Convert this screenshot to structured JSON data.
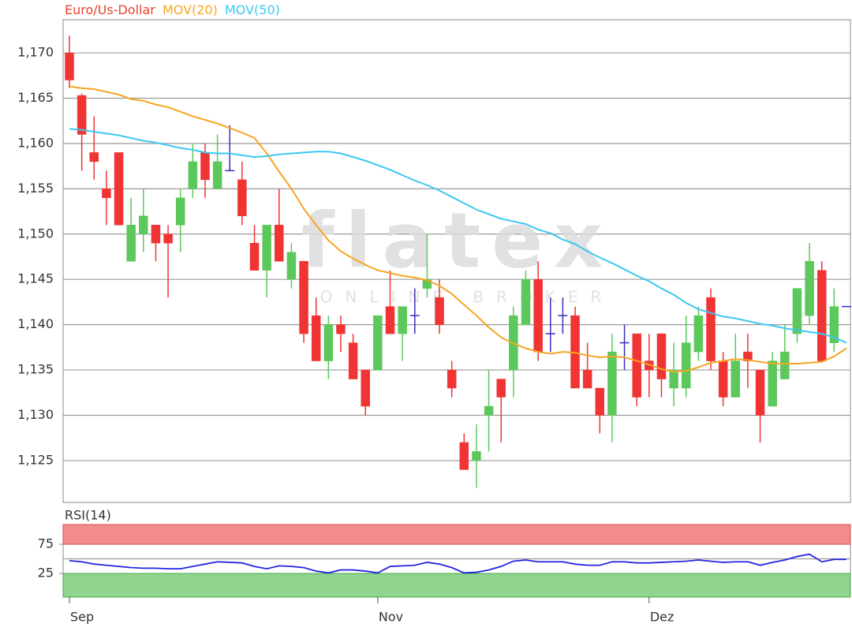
{
  "chart_data": [
    {
      "type": "candlestick",
      "ylim": [
        1.12038,
        1.17366
      ],
      "yticks": [
        {
          "value": 1.125,
          "label": "1,125"
        },
        {
          "value": 1.13,
          "label": "1,130"
        },
        {
          "value": 1.135,
          "label": "1,135"
        },
        {
          "value": 1.14,
          "label": "1,140"
        },
        {
          "value": 1.145,
          "label": "1,145"
        },
        {
          "value": 1.15,
          "label": "1,150"
        },
        {
          "value": 1.155,
          "label": "1,155"
        },
        {
          "value": 1.16,
          "label": "1,160"
        },
        {
          "value": 1.165,
          "label": "1,165"
        },
        {
          "value": 1.17,
          "label": "1,170"
        }
      ],
      "grid": true,
      "watermark": {
        "logo": "flatex",
        "tagline": "ONLINE BROKER"
      },
      "series": [
        {
          "name": "Euro/Us-Dollar",
          "color": "#e8432e",
          "up_color": "#5cc85c",
          "down_color": "#f03434",
          "flat_color": "#3a2fbf",
          "open": [
            1.17,
            1.1653,
            1.159,
            1.155,
            1.159,
            1.147,
            1.15,
            1.151,
            1.15,
            1.151,
            1.155,
            1.159,
            1.155,
            1.157,
            1.156,
            1.149,
            1.146,
            1.151,
            1.145,
            1.147,
            1.141,
            1.136,
            1.14,
            1.138,
            1.135,
            1.135,
            1.142,
            1.139,
            1.141,
            1.144,
            1.143,
            1.135,
            1.127,
            1.125,
            1.13,
            1.134,
            1.135,
            1.14,
            1.145,
            1.139,
            1.141,
            1.141,
            1.135,
            1.133,
            1.13,
            1.138,
            1.139,
            1.136,
            1.139,
            1.133,
            1.133,
            1.137,
            1.143,
            1.136,
            1.132,
            1.137,
            1.135,
            1.131,
            1.134,
            1.139,
            1.141,
            1.146,
            1.138,
            1.142
          ],
          "high": [
            1.1719,
            1.1655,
            1.163,
            1.157,
            1.159,
            1.154,
            1.155,
            1.151,
            1.151,
            1.155,
            1.16,
            1.16,
            1.161,
            1.162,
            1.158,
            1.151,
            1.151,
            1.155,
            1.149,
            1.147,
            1.143,
            1.141,
            1.141,
            1.139,
            1.135,
            1.141,
            1.146,
            1.142,
            1.144,
            1.15,
            1.145,
            1.136,
            1.128,
            1.129,
            1.135,
            1.134,
            1.142,
            1.146,
            1.147,
            1.143,
            1.143,
            1.142,
            1.138,
            1.133,
            1.139,
            1.14,
            1.139,
            1.139,
            1.139,
            1.138,
            1.141,
            1.142,
            1.144,
            1.137,
            1.139,
            1.139,
            1.135,
            1.137,
            1.14,
            1.144,
            1.149,
            1.147,
            1.144,
            1.142
          ],
          "low": [
            1.1661,
            1.157,
            1.156,
            1.151,
            1.151,
            1.147,
            1.148,
            1.147,
            1.143,
            1.148,
            1.154,
            1.154,
            1.155,
            1.157,
            1.151,
            1.146,
            1.143,
            1.147,
            1.144,
            1.138,
            1.136,
            1.134,
            1.137,
            1.134,
            1.13,
            1.135,
            1.139,
            1.136,
            1.139,
            1.143,
            1.139,
            1.132,
            1.124,
            1.122,
            1.126,
            1.127,
            1.132,
            1.14,
            1.136,
            1.137,
            1.139,
            1.133,
            1.133,
            1.128,
            1.127,
            1.135,
            1.131,
            1.132,
            1.132,
            1.131,
            1.132,
            1.136,
            1.135,
            1.131,
            1.132,
            1.133,
            1.127,
            1.131,
            1.134,
            1.138,
            1.14,
            1.136,
            1.137,
            1.142
          ],
          "close": [
            1.167,
            1.161,
            1.158,
            1.154,
            1.151,
            1.151,
            1.152,
            1.149,
            1.149,
            1.154,
            1.158,
            1.156,
            1.158,
            1.157,
            1.152,
            1.146,
            1.151,
            1.147,
            1.148,
            1.139,
            1.136,
            1.14,
            1.139,
            1.134,
            1.131,
            1.141,
            1.139,
            1.142,
            1.141,
            1.145,
            1.14,
            1.133,
            1.124,
            1.126,
            1.131,
            1.132,
            1.141,
            1.145,
            1.137,
            1.139,
            1.141,
            1.133,
            1.133,
            1.13,
            1.137,
            1.138,
            1.132,
            1.135,
            1.134,
            1.135,
            1.138,
            1.141,
            1.136,
            1.132,
            1.136,
            1.136,
            1.13,
            1.136,
            1.137,
            1.144,
            1.147,
            1.136,
            1.142,
            1.142
          ]
        },
        {
          "name": "MOV(20)",
          "color": "#f5a623",
          "values": [
            1.1663,
            1.1661,
            1.166,
            1.1657,
            1.1654,
            1.1649,
            1.1647,
            1.1643,
            1.164,
            1.1635,
            1.163,
            1.1626,
            1.1622,
            1.1617,
            1.1612,
            1.1606,
            1.1589,
            1.1569,
            1.155,
            1.1528,
            1.151,
            1.1493,
            1.1481,
            1.1473,
            1.1466,
            1.146,
            1.1457,
            1.1454,
            1.1452,
            1.1449,
            1.1443,
            1.1434,
            1.1422,
            1.141,
            1.1397,
            1.1386,
            1.1379,
            1.1374,
            1.137,
            1.1368,
            1.137,
            1.1369,
            1.1366,
            1.1364,
            1.1365,
            1.1364,
            1.136,
            1.1356,
            1.1351,
            1.1348,
            1.1349,
            1.1353,
            1.1358,
            1.136,
            1.1362,
            1.1361,
            1.1359,
            1.1357,
            1.1357,
            1.1357,
            1.1358,
            1.1359,
            1.1365,
            1.1374
          ]
        },
        {
          "name": "MOV(50)",
          "color": "#3cc8f0",
          "values": [
            1.1616,
            1.1615,
            1.1613,
            1.1611,
            1.1609,
            1.1606,
            1.1603,
            1.1601,
            1.1598,
            1.1595,
            1.1593,
            1.159,
            1.1589,
            1.1589,
            1.1587,
            1.1585,
            1.1586,
            1.1588,
            1.1589,
            1.159,
            1.1591,
            1.1591,
            1.1589,
            1.1585,
            1.1581,
            1.1576,
            1.1571,
            1.1565,
            1.1559,
            1.1554,
            1.1548,
            1.1541,
            1.1534,
            1.1527,
            1.1522,
            1.1517,
            1.1514,
            1.1511,
            1.1505,
            1.1501,
            1.1494,
            1.1489,
            1.1481,
            1.1474,
            1.1468,
            1.1461,
            1.1454,
            1.1448,
            1.144,
            1.1433,
            1.1424,
            1.1417,
            1.1413,
            1.1409,
            1.1407,
            1.1404,
            1.1401,
            1.1399,
            1.1396,
            1.1394,
            1.1392,
            1.139,
            1.1386,
            1.138
          ]
        }
      ]
    },
    {
      "type": "line",
      "categories": [
        "Sep",
        null,
        null,
        null,
        null,
        null,
        null,
        null,
        null,
        null,
        null,
        null,
        null,
        null,
        null,
        null,
        null,
        null,
        null,
        null,
        null,
        null,
        null,
        null,
        null,
        "Nov",
        null,
        null,
        null,
        null,
        null,
        null,
        null,
        null,
        null,
        null,
        null,
        null,
        null,
        null,
        null,
        null,
        null,
        null,
        null,
        null,
        null,
        "Dez",
        null,
        null,
        null,
        null,
        null,
        null,
        null,
        null,
        null,
        null,
        null,
        null,
        null,
        null,
        null,
        null
      ],
      "ylim": [
        -15.5,
        108.8
      ],
      "yticks": [
        25,
        75
      ],
      "midline": 50,
      "zones": [
        {
          "above": 75,
          "color": "#f28b8b",
          "stroke": "#e04848"
        },
        {
          "below": 25,
          "color": "#8fd48f",
          "stroke": "#48a848"
        }
      ],
      "series": [
        {
          "name": "RSI(14)",
          "color": "#2525e0",
          "values": [
            47,
            45,
            41,
            39,
            37,
            35,
            34,
            34,
            33,
            33,
            37,
            41,
            45,
            44,
            43,
            37,
            33,
            38,
            37,
            35,
            29,
            26,
            31,
            31,
            29,
            26,
            37,
            38,
            39,
            44,
            41,
            35,
            26,
            27,
            31,
            37,
            46,
            48,
            45,
            45,
            45,
            41,
            39,
            39,
            45,
            45,
            43,
            43,
            44,
            45,
            46,
            48,
            46,
            44,
            45,
            45,
            39,
            44,
            48,
            54,
            58,
            45,
            49,
            49
          ]
        }
      ]
    }
  ]
}
